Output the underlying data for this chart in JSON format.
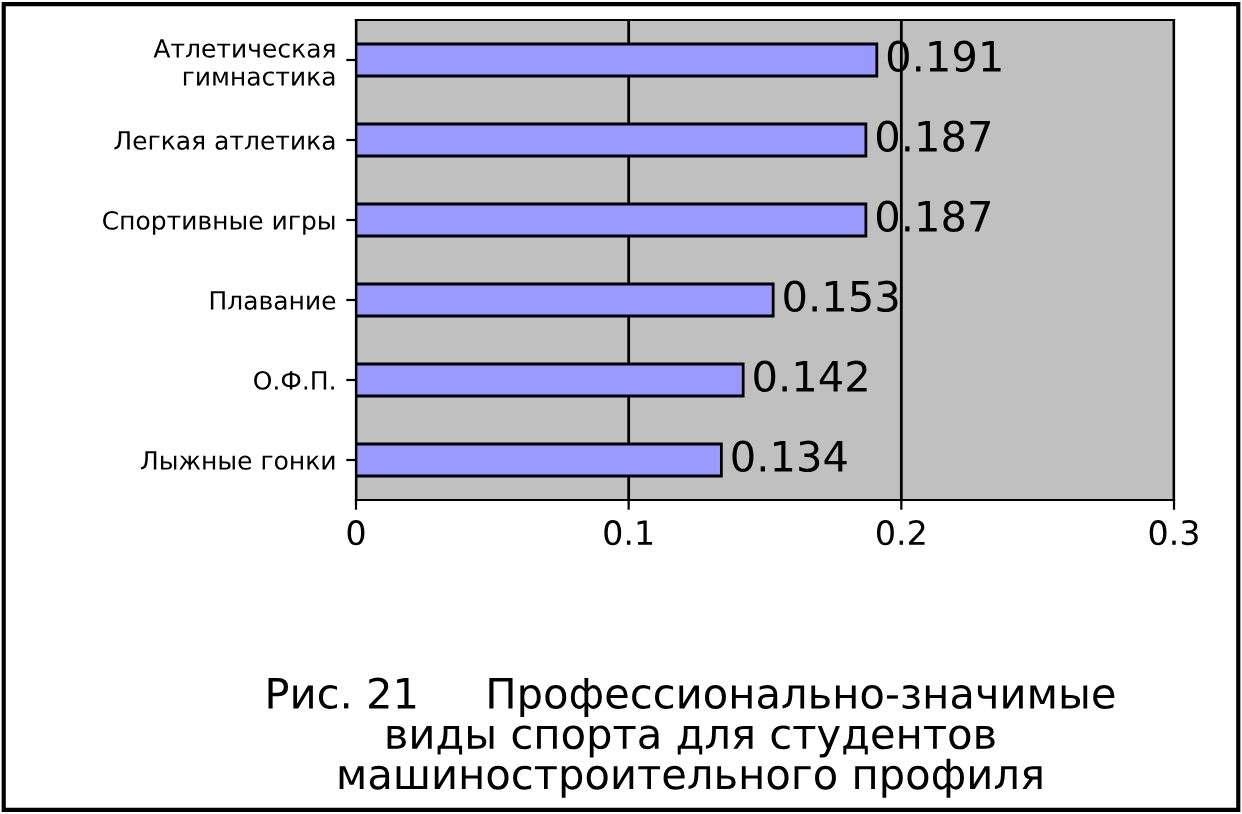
{
  "chart_data": {
    "type": "bar",
    "orientation": "horizontal",
    "title": "Рис. 21     Профессионально-значимые\nвиды спорта для студентов\nмашиностроительного профиля",
    "categories": [
      "Атлетическая\nгимнастика",
      "Легкая атлетика",
      "Спортивные игры",
      "Плавание",
      "О.Ф.П.",
      "Лыжные гонки"
    ],
    "values": [
      0.191,
      0.187,
      0.187,
      0.153,
      0.142,
      0.134
    ],
    "color": "#9999ff",
    "xlim": [
      0,
      0.3
    ],
    "xticks": [
      0,
      0.1,
      0.2,
      0.3
    ],
    "grid": "x",
    "data_labels": true
  }
}
